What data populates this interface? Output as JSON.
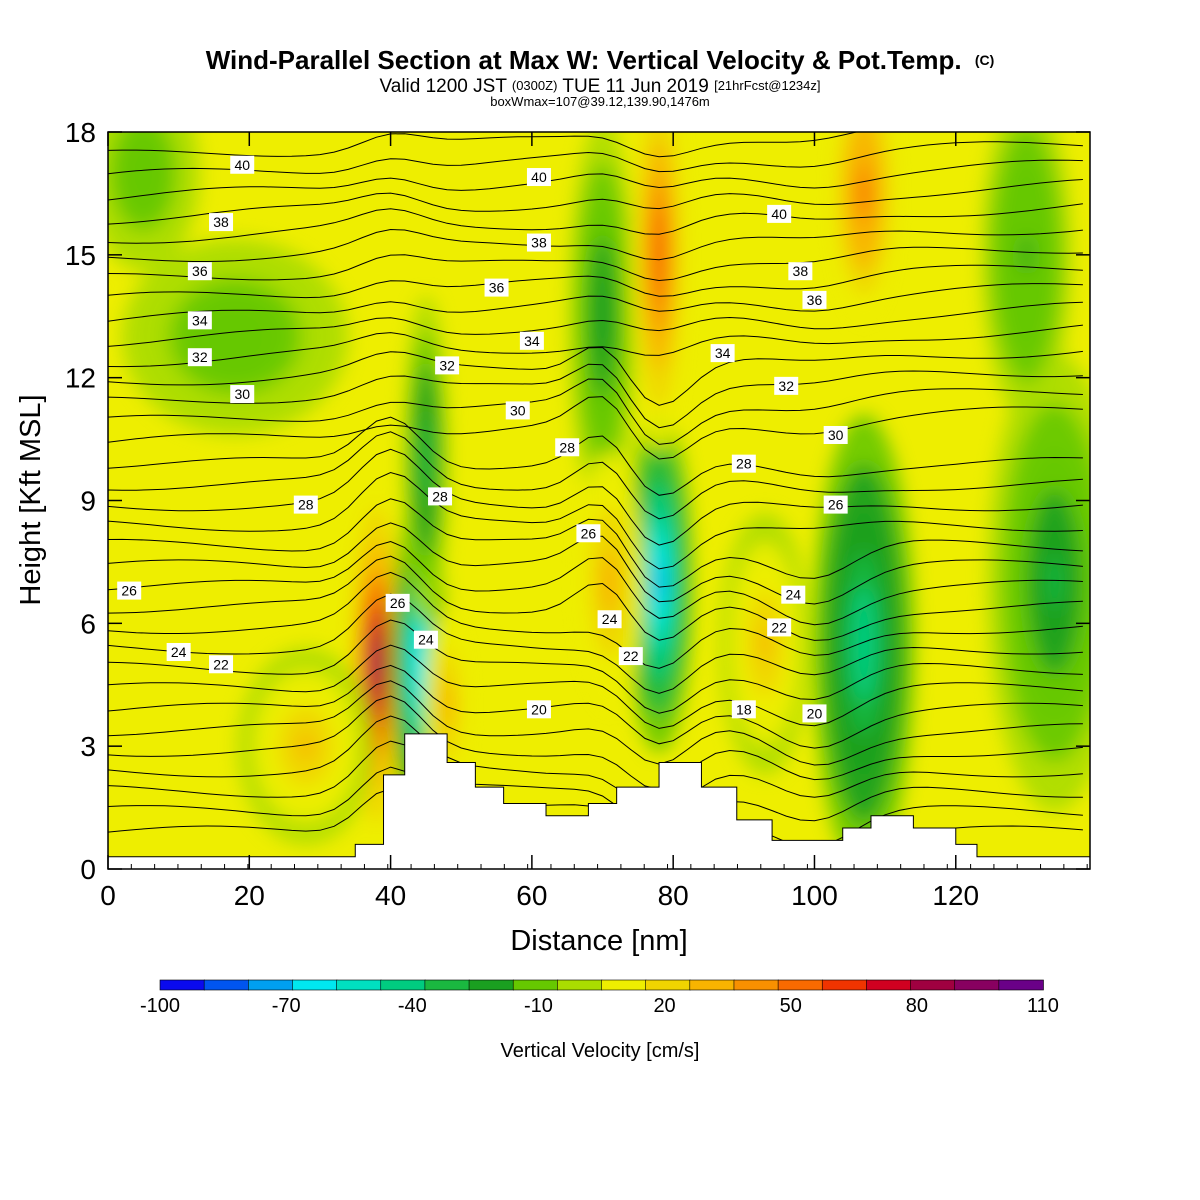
{
  "header": {
    "title": "Wind-Parallel Section at Max W: Vertical Velocity & Pot.Temp.",
    "copyright": "(C)",
    "valid_line": {
      "part1": "Valid 1200 JST",
      "part2": "(0300Z)",
      "part3": "TUE 11 Jun 2019",
      "part4": "[21hrFcst@1234z]"
    },
    "box_line": "boxWmax=107@39.12,139.90,1476m"
  },
  "colorbar": {
    "title": "Vertical Velocity [cm/s]",
    "tick_labels": [
      "-100",
      "-70",
      "-40",
      "-10",
      "20",
      "50",
      "80",
      "110"
    ],
    "colors": [
      "#0a0aee",
      "#0055f0",
      "#00a0f0",
      "#00e8f0",
      "#00e0c0",
      "#00cc80",
      "#1ab840",
      "#1aa020",
      "#66c800",
      "#aadc00",
      "#eeee00",
      "#f0d400",
      "#f8b400",
      "#f89000",
      "#f86a00",
      "#f03400",
      "#d00020",
      "#a00040",
      "#880060",
      "#6a0088"
    ]
  },
  "chart_data": {
    "type": "heatmap",
    "xlabel": "Distance [nm]",
    "ylabel": "Height [Kft MSL]",
    "xlim": [
      0,
      139
    ],
    "ylim": [
      0,
      18
    ],
    "x_ticks": [
      "0",
      "20",
      "40",
      "60",
      "80",
      "100",
      "120"
    ],
    "y_ticks": [
      "0",
      "3",
      "6",
      "9",
      "12",
      "15",
      "18"
    ],
    "background": "#eeee00",
    "velocity_features": [
      {
        "kind": "updraft",
        "x": 38,
        "y": 5.0,
        "rx": 2.2,
        "ry": 2.4,
        "peak": 107
      },
      {
        "kind": "downdraft",
        "x": 44,
        "y": 5.0,
        "rx": 2.5,
        "ry": 2.6,
        "peak": -75
      },
      {
        "kind": "downdraft",
        "x": 45,
        "y": 10.0,
        "rx": 2.0,
        "ry": 2.5,
        "peak": -35
      },
      {
        "kind": "downdraft",
        "x": 78,
        "y": 7.0,
        "rx": 3.0,
        "ry": 2.6,
        "peak": -80
      },
      {
        "kind": "downdraft",
        "x": 107,
        "y": 5.5,
        "rx": 4.5,
        "ry": 3.5,
        "peak": -50
      },
      {
        "kind": "downdraft",
        "x": 70,
        "y": 13.5,
        "rx": 3.0,
        "ry": 3.0,
        "peak": -25
      },
      {
        "kind": "updraft",
        "x": 78,
        "y": 15.0,
        "rx": 2.5,
        "ry": 3.0,
        "peak": 60
      },
      {
        "kind": "updraft",
        "x": 107,
        "y": 16.5,
        "rx": 3.0,
        "ry": 2.0,
        "peak": 55
      },
      {
        "kind": "updraft",
        "x": 71,
        "y": 7.0,
        "rx": 3.0,
        "ry": 2.0,
        "peak": 35
      },
      {
        "kind": "updraft",
        "x": 93,
        "y": 5.5,
        "rx": 4.0,
        "ry": 2.0,
        "peak": 30
      },
      {
        "kind": "updraft",
        "x": 28,
        "y": 3.0,
        "rx": 6.0,
        "ry": 1.5,
        "peak": 30
      },
      {
        "kind": "updraft",
        "x": 48,
        "y": 4.0,
        "rx": 2.0,
        "ry": 1.5,
        "peak": 35
      },
      {
        "kind": "downdraft",
        "x": 134,
        "y": 7.0,
        "rx": 6.0,
        "ry": 3.5,
        "peak": -30
      },
      {
        "kind": "downdraft",
        "x": 130,
        "y": 15.0,
        "rx": 4.0,
        "ry": 2.5,
        "peak": -20
      },
      {
        "kind": "downdraft",
        "x": 5,
        "y": 17.0,
        "rx": 5.0,
        "ry": 1.5,
        "peak": -15
      },
      {
        "kind": "downdraft",
        "x": 18,
        "y": 13.0,
        "rx": 10.0,
        "ry": 1.5,
        "peak": -15
      }
    ],
    "terrain": [
      [
        35,
        0.6
      ],
      [
        39,
        2.3
      ],
      [
        42,
        3.3
      ],
      [
        48,
        2.6
      ],
      [
        52,
        2.0
      ],
      [
        56,
        1.6
      ],
      [
        62,
        1.3
      ],
      [
        68,
        1.6
      ],
      [
        72,
        2.0
      ],
      [
        78,
        2.6
      ],
      [
        84,
        2.0
      ],
      [
        89,
        1.2
      ],
      [
        94,
        0.7
      ],
      [
        100,
        0.7
      ],
      [
        104,
        1.0
      ],
      [
        108,
        1.3
      ],
      [
        114,
        1.0
      ],
      [
        120,
        0.6
      ],
      [
        123,
        0.3
      ],
      [
        139,
        0.3
      ]
    ],
    "theta_labels": [
      "40",
      "38",
      "36",
      "34",
      "32",
      "30",
      "28",
      "26",
      "24",
      "22",
      "40",
      "38",
      "36",
      "34",
      "32",
      "30",
      "28",
      "26",
      "24",
      "22",
      "20",
      "40",
      "38",
      "36",
      "34",
      "32",
      "30",
      "28",
      "26",
      "24",
      "22",
      "20",
      "18",
      "28",
      "26",
      "24"
    ]
  }
}
